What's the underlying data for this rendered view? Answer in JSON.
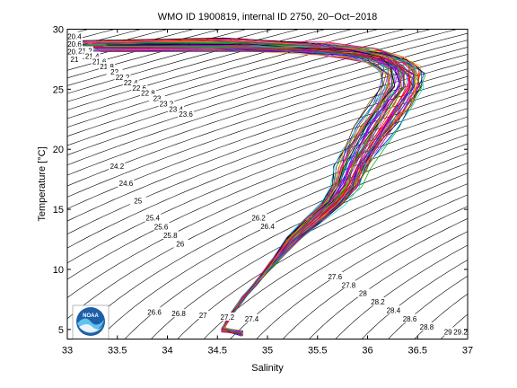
{
  "chart_data": {
    "type": "line",
    "title": "WMO ID 1900819, internal ID 2750, 20−Oct−2018",
    "xlabel": "Salinity",
    "ylabel": "Temperature [°C]",
    "xlim": [
      33,
      37
    ],
    "ylim": [
      4.2,
      30
    ],
    "xticks": [
      "33",
      "33.5",
      "34",
      "34.5",
      "35",
      "35.5",
      "36",
      "36.5",
      "37"
    ],
    "yticks": [
      "5",
      "10",
      "15",
      "20",
      "25",
      "30"
    ],
    "grid": false,
    "density_contours": {
      "color": "#000000",
      "labels": [
        "20.4",
        "20.6",
        "20.8",
        "21",
        "21.2",
        "21.4",
        "21.6",
        "21.8",
        "22",
        "22.2",
        "22.4",
        "22.6",
        "22.8",
        "23",
        "23.2",
        "23.4",
        "23.6",
        "24.2",
        "24.6",
        "25",
        "25.4",
        "25.6",
        "25.8",
        "26",
        "26.2",
        "26.4",
        "26.6",
        "26.8",
        "27",
        "27.2",
        "27.4",
        "27.6",
        "27.8",
        "28",
        "28.2",
        "28.4",
        "28.6",
        "28.8",
        "29",
        "29.2"
      ]
    },
    "ts_profiles": {
      "description_values": "temperature-salinity profiles; each series is [salinity, temperature] pairs",
      "colors": [
        "#0000ff",
        "#ff0000",
        "#00a000",
        "#00cccc",
        "#cc00cc",
        "#aaaa00",
        "#000000",
        "#ff8800",
        "#8800ff",
        "#008888",
        "#884400",
        "#ff0088"
      ],
      "mean_profile": [
        [
          33.2,
          28.6
        ],
        [
          34.6,
          28.7
        ],
        [
          35.5,
          28.4
        ],
        [
          35.95,
          28.0
        ],
        [
          36.2,
          27.4
        ],
        [
          36.35,
          26.5
        ],
        [
          36.35,
          25.2
        ],
        [
          36.25,
          23.8
        ],
        [
          36.1,
          22.0
        ],
        [
          35.95,
          20.0
        ],
        [
          35.85,
          18.5
        ],
        [
          35.78,
          17.0
        ],
        [
          35.65,
          15.5
        ],
        [
          35.45,
          14.0
        ],
        [
          35.25,
          12.5
        ],
        [
          35.05,
          10.5
        ],
        [
          34.9,
          9.0
        ],
        [
          34.75,
          7.5
        ],
        [
          34.62,
          6.0
        ],
        [
          34.55,
          5.0
        ],
        [
          34.75,
          4.7
        ]
      ]
    },
    "logo": "NOAA"
  }
}
